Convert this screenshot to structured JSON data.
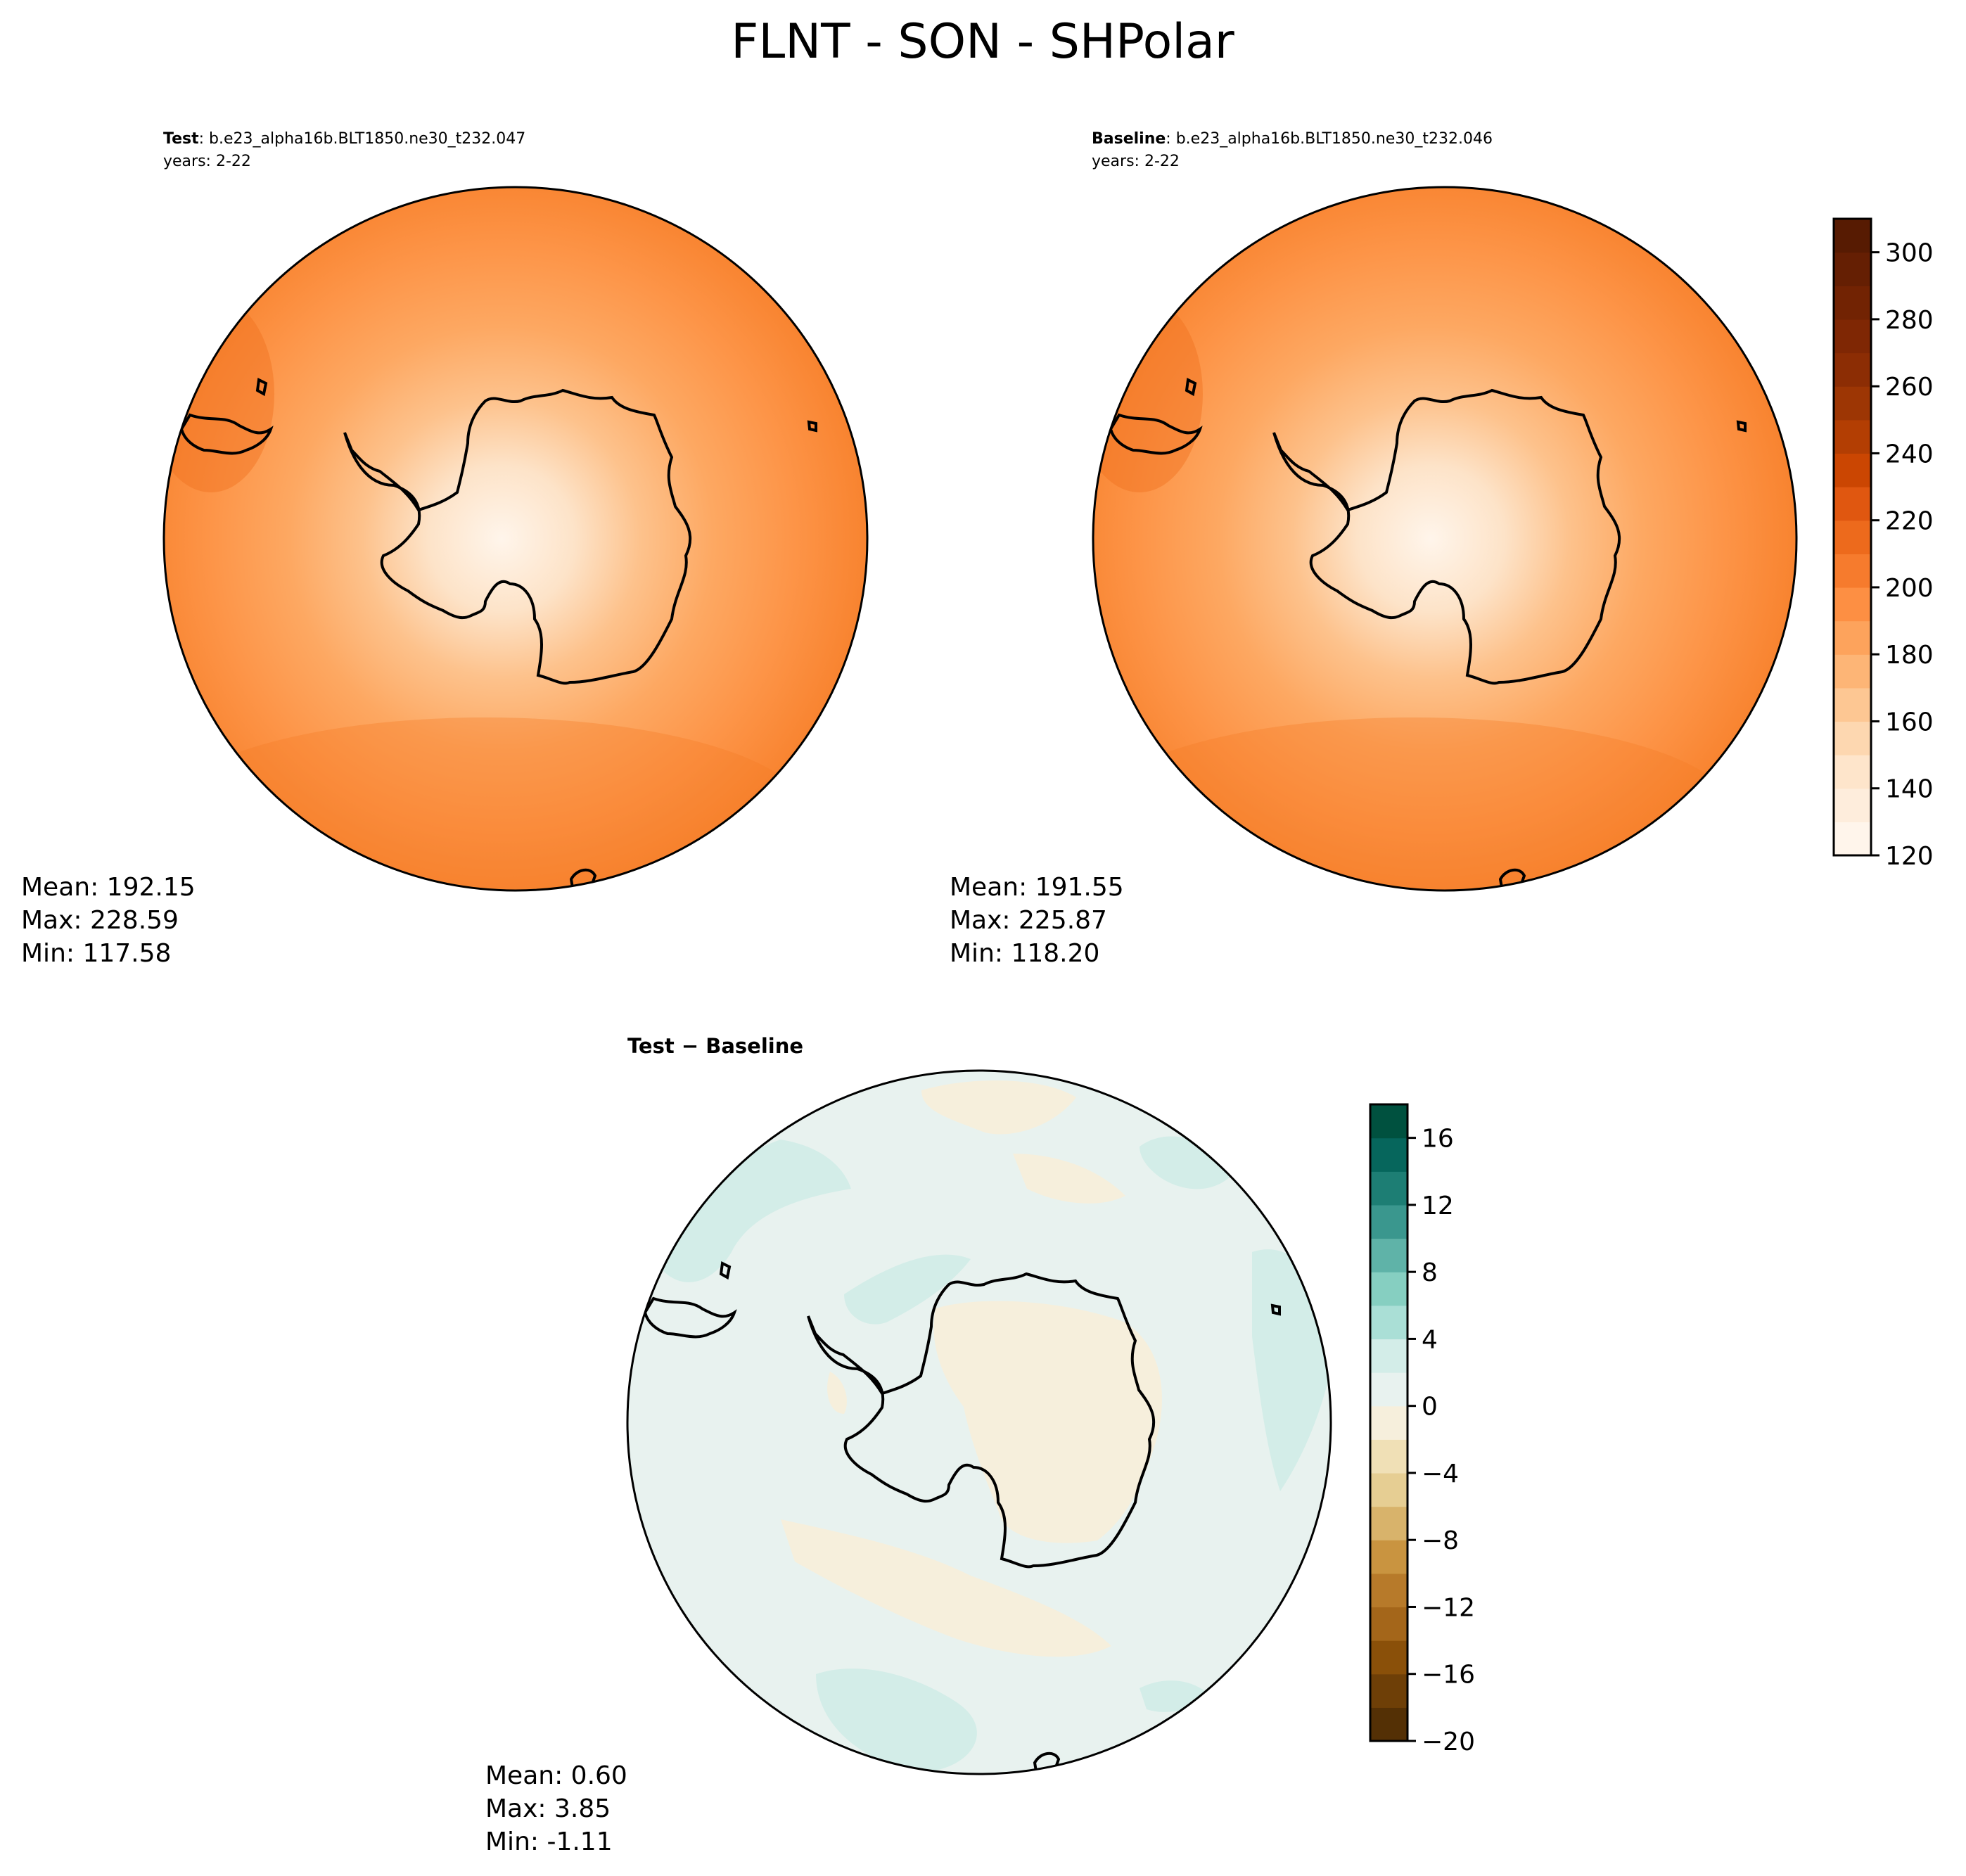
{
  "title": "FLNT - SON - SHPolar",
  "panels": {
    "test": {
      "label": "Test",
      "case": ": b.e23_alpha16b.BLT1850.ne30_t232.047",
      "years": "years: 2-22",
      "mean": "Mean: 192.15",
      "max": "Max: 228.59",
      "min": "Min: 117.58"
    },
    "baseline": {
      "label": "Baseline",
      "case": ": b.e23_alpha16b.BLT1850.ne30_t232.046",
      "years": "years: 2-22",
      "mean": "Mean: 191.55",
      "max": "Max: 225.87",
      "min": "Min: 118.20"
    },
    "diff": {
      "label": "Test − Baseline",
      "mean": "Mean:  0.60",
      "max": "Max:  3.85",
      "min": "Min: -1.11"
    }
  },
  "chart_data": [
    {
      "type": "heatmap",
      "name_ref": "test",
      "projection": "south-polar-stereographic",
      "colormap": "Oranges",
      "levels": [
        120,
        130,
        140,
        150,
        160,
        170,
        180,
        190,
        200,
        210,
        220,
        230,
        240,
        250,
        260,
        270,
        280,
        290,
        300,
        310
      ],
      "summary": {
        "mean": 192.15,
        "max": 228.59,
        "min": 117.58
      }
    },
    {
      "type": "heatmap",
      "name_ref": "baseline",
      "projection": "south-polar-stereographic",
      "colormap": "Oranges",
      "colorbar": {
        "ticks": [
          "120",
          "140",
          "160",
          "180",
          "200",
          "220",
          "240",
          "260",
          "280",
          "300"
        ],
        "range": [
          120,
          310
        ],
        "colors": [
          "#fff5eb",
          "#feeddc",
          "#fee5cb",
          "#fdd7b0",
          "#fdc793",
          "#fdb576",
          "#fda35c",
          "#fd8f43",
          "#f67b2d",
          "#ed6a1c",
          "#e05710",
          "#cb4602",
          "#b33e03",
          "#9d3604",
          "#8c2d04",
          "#7f2704",
          "#722303",
          "#651f03",
          "#571b02"
        ]
      },
      "summary": {
        "mean": 191.55,
        "max": 225.87,
        "min": 118.2
      }
    },
    {
      "type": "heatmap",
      "name_ref": "diff",
      "projection": "south-polar-stereographic",
      "colormap": "BrBG",
      "colorbar": {
        "ticks": [
          "−20",
          "−16",
          "−12",
          "−8",
          "−4",
          "0",
          "4",
          "8",
          "12",
          "16"
        ],
        "tick_values": [
          -20,
          -16,
          -12,
          -8,
          -4,
          0,
          4,
          8,
          12,
          16
        ],
        "range": [
          -20,
          18
        ],
        "colors": [
          "#543005",
          "#6e3f07",
          "#8a5009",
          "#a4661a",
          "#b77a2a",
          "#c99440",
          "#d8b36b",
          "#e6ce93",
          "#f0e0b6",
          "#f6efdc",
          "#e8f2ef",
          "#d3ede8",
          "#aadfd6",
          "#86cfc1",
          "#5fb3a8",
          "#3a978e",
          "#1d7e74",
          "#06665c",
          "#00513f"
        ]
      },
      "summary": {
        "mean": 0.6,
        "max": 3.85,
        "min": -1.11
      }
    }
  ]
}
